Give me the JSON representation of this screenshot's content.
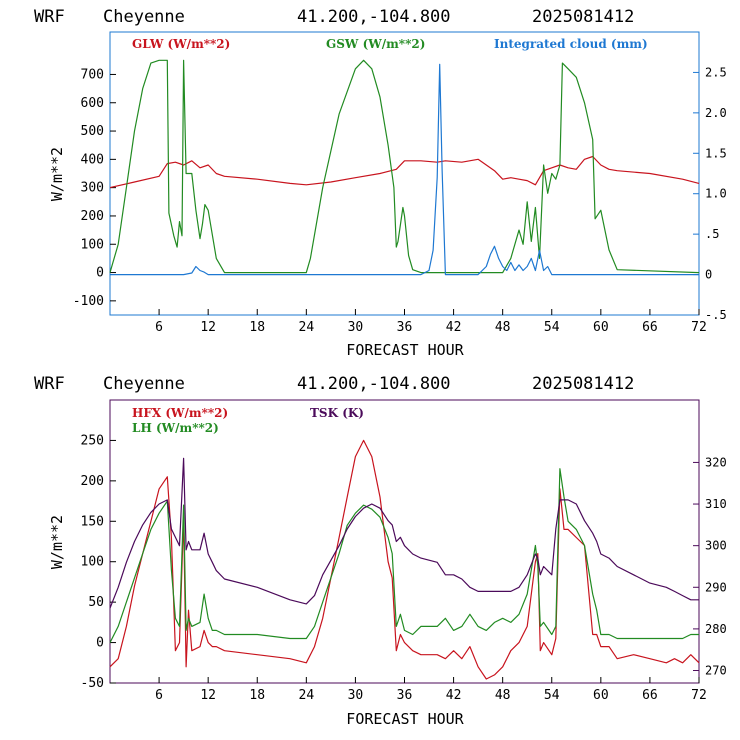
{
  "panels": [
    {
      "header": {
        "model": "WRF",
        "site": "Cheyenne",
        "coords": "41.200,-104.800",
        "init": "2025081412"
      },
      "legend": [
        {
          "label": "GLW (W/m**2)",
          "color": "#c8141e"
        },
        {
          "label": "GSW (W/m**2)",
          "color": "#228b22"
        },
        {
          "label": "Integrated cloud (mm)",
          "color": "#1e78d2"
        }
      ]
    },
    {
      "header": {
        "model": "WRF",
        "site": "Cheyenne",
        "coords": "41.200,-104.800",
        "init": "2025081412"
      },
      "legend": [
        {
          "label": "HFX (W/m**2)",
          "color": "#c8141e"
        },
        {
          "label": "LH  (W/m**2)",
          "color": "#228b22"
        },
        {
          "label": "TSK (K)",
          "color": "#4b0a5a"
        }
      ]
    }
  ],
  "chart_data": [
    {
      "type": "line",
      "xlabel": "FORECAST HOUR",
      "ylabel": "W/m**2",
      "xlim": [
        0,
        72
      ],
      "ylim": [
        -150,
        850
      ],
      "xticks": [
        6,
        12,
        18,
        24,
        30,
        36,
        42,
        48,
        54,
        60,
        66,
        72
      ],
      "yticks": [
        -100,
        0,
        100,
        200,
        300,
        400,
        500,
        600,
        700
      ],
      "y2lim": [
        -0.5,
        3.0
      ],
      "y2ticks": [
        -0.5,
        0,
        0.5,
        1.0,
        1.5,
        2.0,
        2.5
      ],
      "y2ticklabels": [
        "-.5",
        "0",
        ".5",
        "1.0",
        "1.5",
        "2.0",
        "2.5"
      ],
      "grid": false,
      "series": [
        {
          "name": "GLW (W/m**2)",
          "axis": "left",
          "color": "#c8141e",
          "x": [
            0,
            3,
            6,
            7,
            8,
            9,
            10,
            11,
            12,
            13,
            14,
            18,
            22,
            24,
            27,
            30,
            33,
            35,
            36,
            38,
            40,
            41,
            43,
            45,
            46,
            47,
            48,
            49,
            50,
            51,
            52,
            53,
            54,
            55,
            56,
            57,
            58,
            59,
            60,
            61,
            62,
            66,
            70,
            72
          ],
          "y": [
            300,
            320,
            340,
            385,
            390,
            380,
            395,
            370,
            380,
            350,
            340,
            330,
            315,
            310,
            320,
            335,
            350,
            365,
            395,
            395,
            390,
            395,
            390,
            400,
            380,
            360,
            330,
            335,
            330,
            325,
            310,
            360,
            370,
            380,
            370,
            365,
            400,
            410,
            380,
            365,
            360,
            350,
            330,
            315
          ]
        },
        {
          "name": "GSW (W/m**2)",
          "axis": "left",
          "color": "#228b22",
          "x": [
            0,
            1,
            2,
            3,
            4,
            5,
            6,
            7,
            7.2,
            7.8,
            8.2,
            8.5,
            8.8,
            9,
            9.3,
            10,
            10.5,
            11,
            11.3,
            11.6,
            12,
            13,
            14,
            18,
            24,
            24.5,
            26,
            28,
            30,
            31,
            32,
            33,
            34,
            34.7,
            35,
            35.2,
            35.8,
            36,
            36.5,
            37,
            38,
            42,
            48,
            49,
            50,
            50.5,
            51,
            51.5,
            52,
            52.5,
            53,
            53.5,
            54,
            54.5,
            55,
            55.3,
            56,
            57,
            58,
            59,
            59.3,
            60,
            61,
            62,
            72
          ],
          "y": [
            0,
            100,
            300,
            500,
            650,
            740,
            750,
            750,
            210,
            130,
            90,
            180,
            130,
            750,
            350,
            350,
            220,
            120,
            170,
            240,
            220,
            50,
            0,
            0,
            0,
            50,
            300,
            560,
            720,
            750,
            720,
            620,
            450,
            300,
            90,
            110,
            230,
            200,
            60,
            10,
            0,
            0,
            0,
            50,
            150,
            100,
            250,
            110,
            230,
            50,
            380,
            280,
            350,
            330,
            380,
            740,
            720,
            690,
            600,
            470,
            190,
            220,
            80,
            10,
            0
          ]
        },
        {
          "name": "Integrated cloud (mm)",
          "axis": "right",
          "color": "#1e78d2",
          "x": [
            0,
            9,
            10,
            10.5,
            11,
            11.5,
            12,
            38,
            39,
            39.5,
            40,
            40.3,
            40.6,
            41,
            45,
            46,
            46.5,
            47,
            47.5,
            48,
            48.5,
            49,
            49.5,
            50,
            50.5,
            51,
            51.5,
            52,
            52.5,
            53,
            53.5,
            54,
            72
          ],
          "y": [
            0,
            0,
            0.02,
            0.1,
            0.05,
            0.03,
            0,
            0,
            0.05,
            0.3,
            1.2,
            2.6,
            1.3,
            0,
            0,
            0.1,
            0.25,
            0.35,
            0.2,
            0.1,
            0.05,
            0.15,
            0.05,
            0.12,
            0.05,
            0.1,
            0.2,
            0.05,
            0.3,
            0.05,
            0.1,
            0,
            0
          ]
        }
      ]
    },
    {
      "type": "line",
      "xlabel": "FORECAST HOUR",
      "ylabel": "W/m**2",
      "xlim": [
        0,
        72
      ],
      "ylim": [
        -50,
        300
      ],
      "xticks": [
        6,
        12,
        18,
        24,
        30,
        36,
        42,
        48,
        54,
        60,
        66,
        72
      ],
      "yticks": [
        -50,
        0,
        50,
        100,
        150,
        200,
        250
      ],
      "y2lim": [
        267,
        335
      ],
      "y2ticks": [
        270,
        280,
        290,
        300,
        310,
        320
      ],
      "grid": false,
      "series": [
        {
          "name": "HFX (W/m**2)",
          "axis": "left",
          "color": "#c8141e",
          "x": [
            0,
            1,
            2,
            3,
            4,
            5,
            6,
            7,
            7.5,
            8,
            8.5,
            9,
            9.3,
            9.6,
            10,
            11,
            11.5,
            12,
            12.5,
            13,
            14,
            18,
            22,
            24,
            25,
            26,
            28,
            29,
            30,
            31,
            32,
            33,
            34,
            34.5,
            35,
            35.5,
            36,
            37,
            38,
            40,
            41,
            42,
            43,
            44,
            45,
            46,
            47,
            48,
            49,
            50,
            51,
            52,
            52.3,
            52.6,
            53,
            54,
            54.5,
            55,
            55.5,
            56,
            57,
            58,
            59,
            59.5,
            60,
            61,
            62,
            64,
            66,
            68,
            69,
            70,
            71,
            72
          ],
          "y": [
            -30,
            -20,
            20,
            70,
            110,
            150,
            190,
            205,
            130,
            -10,
            0,
            155,
            -30,
            40,
            -10,
            -5,
            15,
            0,
            -5,
            -5,
            -10,
            -15,
            -20,
            -25,
            -5,
            30,
            130,
            180,
            230,
            250,
            230,
            180,
            100,
            80,
            -10,
            10,
            0,
            -10,
            -15,
            -15,
            -20,
            -10,
            -20,
            -5,
            -30,
            -45,
            -40,
            -30,
            -10,
            0,
            20,
            100,
            110,
            -10,
            0,
            -15,
            5,
            190,
            140,
            140,
            130,
            120,
            10,
            10,
            -5,
            -5,
            -20,
            -15,
            -20,
            -25,
            -20,
            -25,
            -15,
            -25
          ]
        },
        {
          "name": "LH  (W/m**2)",
          "axis": "left",
          "color": "#228b22",
          "x": [
            0,
            1,
            2,
            3,
            4,
            5,
            6,
            7,
            7.5,
            8,
            8.5,
            9,
            9.3,
            9.6,
            10,
            11,
            11.5,
            12,
            12.5,
            13,
            14,
            18,
            22,
            24,
            25,
            26,
            28,
            29,
            30,
            31,
            32,
            33,
            34,
            34.5,
            35,
            35.5,
            36,
            37,
            38,
            40,
            41,
            42,
            43,
            44,
            45,
            46,
            47,
            48,
            49,
            50,
            51,
            52,
            52.3,
            52.6,
            53,
            54,
            54.5,
            55,
            55.5,
            56,
            57,
            58,
            59,
            59.5,
            60,
            61,
            62,
            64,
            66,
            68,
            69,
            70,
            71,
            72
          ],
          "y": [
            0,
            20,
            50,
            80,
            110,
            140,
            160,
            175,
            90,
            30,
            20,
            170,
            15,
            30,
            20,
            25,
            60,
            30,
            15,
            15,
            10,
            10,
            5,
            5,
            20,
            50,
            110,
            145,
            160,
            170,
            165,
            155,
            130,
            110,
            20,
            35,
            15,
            10,
            20,
            20,
            30,
            15,
            20,
            35,
            20,
            15,
            25,
            30,
            25,
            35,
            60,
            120,
            95,
            20,
            25,
            10,
            20,
            215,
            180,
            150,
            140,
            120,
            60,
            40,
            10,
            10,
            5,
            5,
            5,
            5,
            5,
            5,
            10,
            10
          ]
        },
        {
          "name": "TSK (K)",
          "axis": "right",
          "color": "#4b0a5a",
          "x": [
            0,
            1,
            2,
            3,
            4,
            5,
            6,
            7,
            7.5,
            8,
            8.5,
            9,
            9.3,
            9.6,
            10,
            11,
            11.5,
            12,
            12.5,
            13,
            14,
            18,
            22,
            24,
            25,
            26,
            28,
            29,
            30,
            31,
            32,
            33,
            34,
            34.5,
            35,
            35.5,
            36,
            37,
            38,
            40,
            41,
            42,
            43,
            44,
            45,
            46,
            47,
            48,
            49,
            50,
            51,
            52,
            52.3,
            52.6,
            53,
            54,
            54.5,
            55,
            55.5,
            56,
            57,
            58,
            59,
            59.5,
            60,
            61,
            62,
            64,
            66,
            68,
            69,
            70,
            71,
            72
          ],
          "y": [
            285,
            290,
            296,
            301,
            305,
            308,
            310,
            311,
            304,
            302,
            300,
            321,
            299,
            301,
            299,
            299,
            303,
            298,
            296,
            294,
            292,
            290,
            287,
            286,
            288,
            293,
            300,
            304,
            307,
            309,
            310,
            309,
            306,
            305,
            301,
            302,
            300,
            298,
            297,
            296,
            293,
            293,
            292,
            290,
            289,
            289,
            289,
            289,
            289,
            290,
            293,
            298,
            297,
            293,
            295,
            293,
            304,
            311,
            311,
            311,
            310,
            306,
            303,
            301,
            298,
            297,
            295,
            293,
            291,
            290,
            289,
            288,
            287,
            287
          ]
        }
      ]
    }
  ]
}
